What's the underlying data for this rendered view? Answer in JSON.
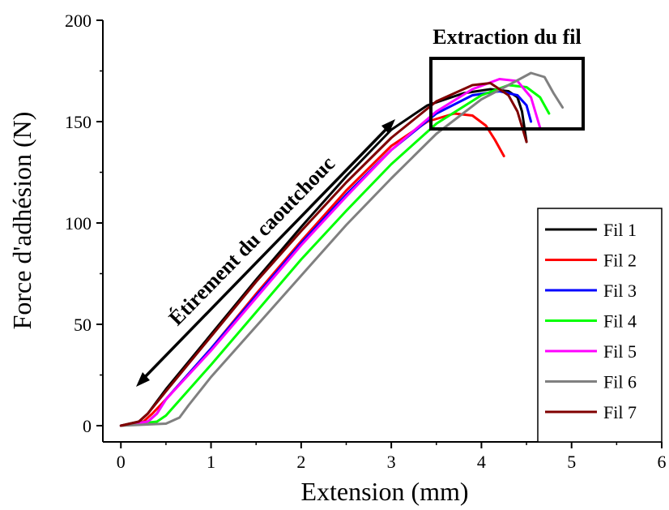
{
  "chart_data": {
    "type": "line",
    "title": "",
    "xlabel": "Extension (mm)",
    "ylabel": "Force d'adhésion (N)",
    "xlim": [
      -0.2,
      6
    ],
    "ylim": [
      -8,
      200
    ],
    "xticks": [
      0,
      1,
      2,
      3,
      4,
      5,
      6
    ],
    "yticks": [
      0,
      50,
      100,
      150,
      200
    ],
    "grid": false,
    "legend_position": "bottom-right",
    "annotations": {
      "stretch": "Étirement  du caoutchouc",
      "extraction": "Extraction du fil"
    },
    "series": [
      {
        "name": "Fil 1",
        "color": "#000000",
        "x": [
          0,
          0.2,
          0.3,
          0.5,
          1,
          1.5,
          2,
          2.5,
          3,
          3.4,
          3.8,
          4.1,
          4.3,
          4.4,
          4.45,
          4.5
        ],
        "y": [
          0,
          2,
          6,
          18,
          45,
          72,
          98,
          123,
          146,
          158,
          164,
          166,
          165,
          162,
          155,
          140
        ]
      },
      {
        "name": "Fil 2",
        "color": "#ff0000",
        "x": [
          0,
          0.25,
          0.35,
          0.5,
          1,
          1.5,
          2,
          2.5,
          3,
          3.4,
          3.7,
          3.9,
          4.05,
          4.15,
          4.25
        ],
        "y": [
          0,
          2,
          6,
          13,
          38,
          65,
          91,
          116,
          138,
          150,
          154,
          153,
          148,
          141,
          133
        ]
      },
      {
        "name": "Fil 3",
        "color": "#0000ff",
        "x": [
          0,
          0.3,
          0.4,
          0.5,
          1,
          1.5,
          2,
          2.5,
          3,
          3.5,
          3.9,
          4.2,
          4.4,
          4.5,
          4.55
        ],
        "y": [
          0,
          2,
          6,
          13,
          38,
          64,
          90,
          114,
          136,
          154,
          163,
          165,
          163,
          158,
          150
        ]
      },
      {
        "name": "Fil 4",
        "color": "#00ff00",
        "x": [
          0,
          0.4,
          0.5,
          0.6,
          1,
          1.5,
          2,
          2.5,
          3,
          3.5,
          4,
          4.3,
          4.5,
          4.65,
          4.75
        ],
        "y": [
          0,
          2,
          5,
          10,
          30,
          56,
          82,
          106,
          129,
          149,
          163,
          168,
          167,
          162,
          154
        ]
      },
      {
        "name": "Fil 5",
        "color": "#ff00ff",
        "x": [
          0,
          0.3,
          0.4,
          0.5,
          1,
          1.5,
          2,
          2.5,
          3,
          3.5,
          3.9,
          4.2,
          4.4,
          4.55,
          4.65
        ],
        "y": [
          0,
          2,
          6,
          13,
          37,
          63,
          89,
          113,
          136,
          155,
          166,
          171,
          170,
          162,
          147
        ]
      },
      {
        "name": "Fil 6",
        "color": "#808080",
        "x": [
          0,
          0.5,
          0.65,
          0.75,
          1,
          1.5,
          2,
          2.5,
          3,
          3.5,
          4,
          4.3,
          4.55,
          4.7,
          4.8,
          4.9
        ],
        "y": [
          0,
          1,
          4,
          10,
          24,
          49,
          74,
          99,
          122,
          144,
          161,
          168,
          174,
          172,
          164,
          157
        ]
      },
      {
        "name": "Fil 7",
        "color": "#800000",
        "x": [
          0,
          0.2,
          0.3,
          0.5,
          1,
          1.5,
          2,
          2.5,
          3,
          3.5,
          3.9,
          4.1,
          4.2,
          4.3,
          4.4,
          4.5
        ],
        "y": [
          0,
          2,
          6,
          17,
          44,
          71,
          96,
          120,
          142,
          160,
          168,
          169,
          166,
          163,
          155,
          140
        ]
      }
    ]
  }
}
